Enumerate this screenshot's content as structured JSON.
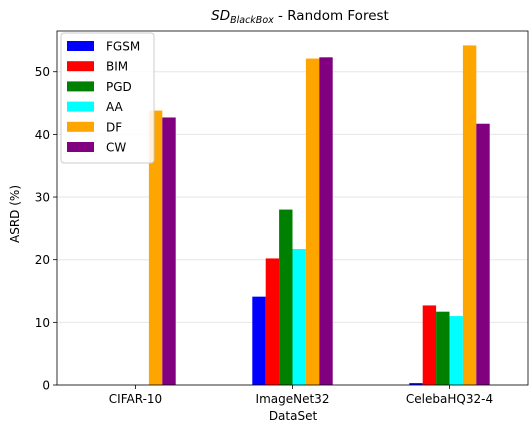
{
  "chart_data": {
    "type": "bar",
    "title_main": "SD",
    "title_sub": "BlackBox",
    "title_rest": " - Random Forest",
    "xlabel": "DataSet",
    "ylabel": "ASRD (%)",
    "ylim": [
      0,
      56.5
    ],
    "yticks": [
      0,
      10,
      20,
      30,
      40,
      50
    ],
    "categories": [
      "CIFAR-10",
      "ImageNet32",
      "CelebaHQ32-4"
    ],
    "grid": "y",
    "legend_position": "top-left",
    "series": [
      {
        "name": "FGSM",
        "color": "#0000ff",
        "values": [
          0,
          14.1,
          0.3
        ]
      },
      {
        "name": "BIM",
        "color": "#ff0000",
        "values": [
          0,
          20.2,
          12.7
        ]
      },
      {
        "name": "PGD",
        "color": "#008000",
        "values": [
          0,
          28.0,
          11.7
        ]
      },
      {
        "name": "AA",
        "color": "#00ffff",
        "values": [
          0,
          21.7,
          11.0
        ]
      },
      {
        "name": "DF",
        "color": "#ffa500",
        "values": [
          43.8,
          52.1,
          54.2
        ]
      },
      {
        "name": "CW",
        "color": "#800080",
        "values": [
          42.7,
          52.3,
          41.7
        ]
      }
    ]
  }
}
